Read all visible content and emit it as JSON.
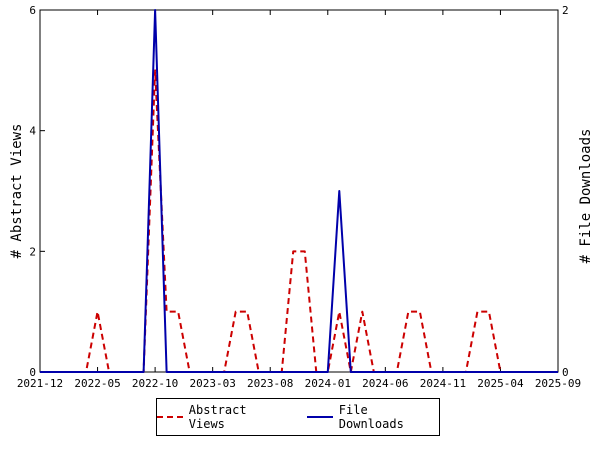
{
  "chart_data": {
    "type": "line",
    "x_tick_labels": [
      "2021-12",
      "2022-05",
      "2022-10",
      "2023-03",
      "2023-08",
      "2024-01",
      "2024-06",
      "2024-11",
      "2025-04",
      "2025-09"
    ],
    "x": [
      "2021-12",
      "2022-01",
      "2022-02",
      "2022-03",
      "2022-04",
      "2022-05",
      "2022-06",
      "2022-07",
      "2022-08",
      "2022-09",
      "2022-10",
      "2022-11",
      "2022-12",
      "2023-01",
      "2023-02",
      "2023-03",
      "2023-04",
      "2023-05",
      "2023-06",
      "2023-07",
      "2023-08",
      "2023-09",
      "2023-10",
      "2023-11",
      "2023-12",
      "2024-01",
      "2024-02",
      "2024-03",
      "2024-04",
      "2024-05",
      "2024-06",
      "2024-07",
      "2024-08",
      "2024-09",
      "2024-10",
      "2024-11",
      "2024-12",
      "2025-01",
      "2025-02",
      "2025-03",
      "2025-04",
      "2025-05",
      "2025-06",
      "2025-07",
      "2025-08",
      "2025-09"
    ],
    "series": [
      {
        "name": "Abstract Views",
        "axis": "left",
        "color": "#cc0000",
        "style": "dashed",
        "values": [
          0,
          0,
          0,
          0,
          0,
          1,
          0,
          0,
          0,
          0,
          5,
          1,
          1,
          0,
          0,
          0,
          0,
          1,
          1,
          0,
          0,
          0,
          2,
          2,
          0,
          0,
          1,
          0,
          1,
          0,
          0,
          0,
          1,
          1,
          0,
          0,
          0,
          0,
          1,
          1,
          0,
          0,
          0,
          0,
          0,
          0
        ]
      },
      {
        "name": "File Downloads",
        "axis": "right",
        "color": "#0000aa",
        "style": "solid",
        "values": [
          0,
          0,
          0,
          0,
          0,
          0,
          0,
          0,
          0,
          0,
          2,
          0,
          0,
          0,
          0,
          0,
          0,
          0,
          0,
          0,
          0,
          0,
          0,
          0,
          0,
          0,
          1,
          0,
          0,
          0,
          0,
          0,
          0,
          0,
          0,
          0,
          0,
          0,
          0,
          0,
          0,
          0,
          0,
          0,
          0,
          0
        ]
      }
    ],
    "y_left": {
      "label": "# Abstract Views",
      "ylim": [
        0,
        6
      ],
      "ticks": [
        "0",
        "2",
        "4",
        "6"
      ]
    },
    "y_right": {
      "label": "# File Downloads",
      "ylim": [
        0,
        2
      ],
      "ticks": [
        "0",
        "2"
      ]
    },
    "legend_position": "bottom",
    "grid": false
  }
}
